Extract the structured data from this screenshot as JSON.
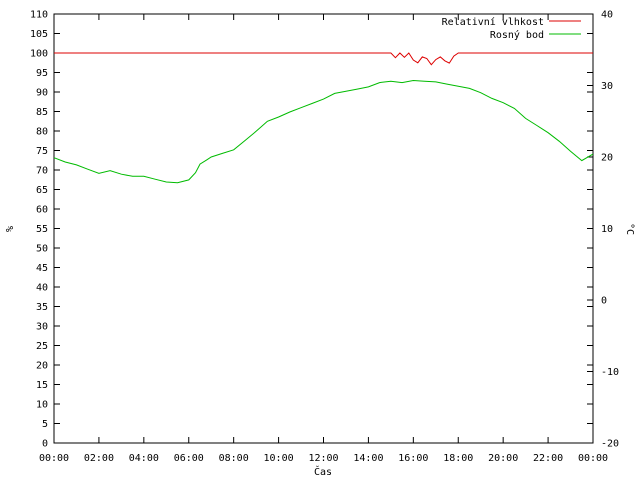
{
  "chart_data": {
    "type": "line",
    "title": "",
    "xlabel": "Čas",
    "ylabel_left": "%",
    "ylabel_right": "°C",
    "grid": false,
    "legend_position": "top-right",
    "x_ticks": [
      "00:00",
      "02:00",
      "04:00",
      "06:00",
      "08:00",
      "10:00",
      "12:00",
      "14:00",
      "16:00",
      "18:00",
      "20:00",
      "22:00",
      "00:00"
    ],
    "x_range_hours": [
      0,
      24
    ],
    "y_left_ticks": [
      0,
      5,
      10,
      15,
      20,
      25,
      30,
      35,
      40,
      45,
      50,
      55,
      60,
      65,
      70,
      75,
      80,
      85,
      90,
      95,
      100,
      105,
      110
    ],
    "y_left_range": [
      0,
      110
    ],
    "y_right_ticks": [
      -20,
      -10,
      0,
      10,
      20,
      30,
      40
    ],
    "y_right_range": [
      -20,
      40
    ],
    "series": [
      {
        "name": "Relativní vlhkost",
        "axis": "left",
        "color": "#dd0000",
        "x": [
          0,
          15.0,
          15.2,
          15.4,
          15.6,
          15.8,
          16.0,
          16.2,
          16.4,
          16.6,
          16.8,
          17.0,
          17.2,
          17.4,
          17.6,
          17.8,
          18.0,
          24
        ],
        "y": [
          100,
          100,
          98.8,
          100,
          98.9,
          100,
          98.2,
          97.5,
          99.0,
          98.6,
          97.0,
          98.3,
          99.0,
          98.0,
          97.4,
          99.2,
          100,
          100
        ]
      },
      {
        "name": "Rosný bod",
        "axis": "right",
        "color": "#00bb00",
        "x": [
          0,
          0.5,
          1.0,
          1.5,
          2.0,
          2.5,
          3.0,
          3.5,
          4.0,
          4.5,
          5.0,
          5.5,
          6.0,
          6.3,
          6.5,
          6.8,
          7.0,
          7.5,
          8.0,
          8.5,
          9.0,
          9.5,
          10.0,
          10.5,
          11.0,
          11.5,
          12.0,
          12.5,
          13.0,
          13.5,
          14.0,
          14.5,
          15.0,
          15.5,
          16.0,
          16.5,
          17.0,
          17.5,
          18.0,
          18.5,
          19.0,
          19.5,
          20.0,
          20.5,
          21.0,
          21.5,
          22.0,
          22.5,
          23.0,
          23.5,
          24.0
        ],
        "y": [
          19.9,
          19.3,
          18.9,
          18.3,
          17.7,
          18.1,
          17.6,
          17.3,
          17.3,
          16.9,
          16.5,
          16.4,
          16.8,
          17.8,
          19.0,
          19.6,
          20.0,
          20.5,
          21.0,
          22.3,
          23.6,
          25.0,
          25.6,
          26.3,
          26.9,
          27.5,
          28.1,
          28.9,
          29.2,
          29.5,
          29.8,
          30.4,
          30.6,
          30.4,
          30.7,
          30.6,
          30.5,
          30.2,
          29.9,
          29.6,
          29.0,
          28.2,
          27.6,
          26.8,
          25.4,
          24.4,
          23.4,
          22.2,
          20.8,
          19.5,
          20.4
        ]
      }
    ]
  }
}
